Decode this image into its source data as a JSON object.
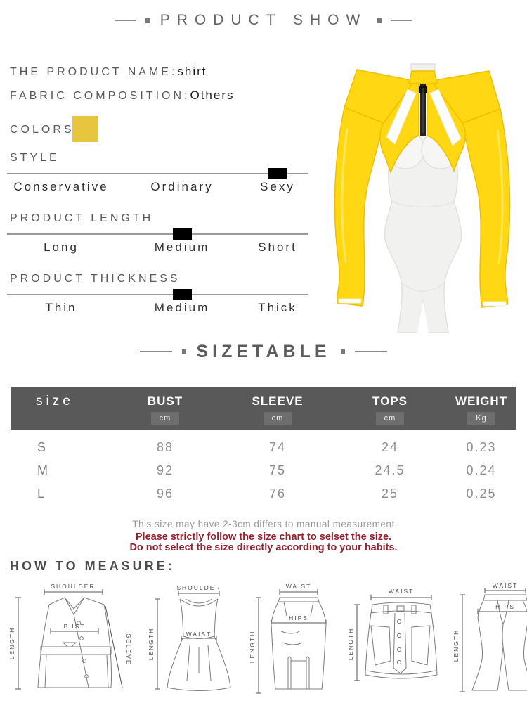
{
  "section_titles": {
    "product_show": "PRODUCT SHOW",
    "sizetable": "SIZETABLE",
    "how_to_measure": "HOW TO MEASURE:"
  },
  "product": {
    "name_label": "THE PRODUCT NAME:",
    "name_value": "shirt",
    "fabric_label": "FABRIC COMPOSITION:",
    "fabric_value": "Others",
    "colors_label": "COLORS:",
    "swatch_color_name": "yellow"
  },
  "attributes": [
    {
      "label": "STYLE",
      "options": [
        "Conservative",
        "Ordinary",
        "Sexy"
      ],
      "selected": "Sexy",
      "selected_index": 2
    },
    {
      "label": "PRODUCT LENGTH",
      "options": [
        "Long",
        "Medium",
        "Short"
      ],
      "selected": "Medium",
      "selected_index": 1
    },
    {
      "label": "PRODUCT THICKNESS",
      "options": [
        "Thin",
        "Medium",
        "Thick"
      ],
      "selected": "Medium",
      "selected_index": 1
    }
  ],
  "size_table": {
    "columns": [
      "size",
      "BUST",
      "SLEEVE",
      "TOPS",
      "WEIGHT"
    ],
    "units": [
      "",
      "cm",
      "cm",
      "cm",
      "Kg"
    ],
    "rows": [
      {
        "size": "S",
        "values": [
          "88",
          "74",
          "24",
          "0.23"
        ]
      },
      {
        "size": "M",
        "values": [
          "92",
          "75",
          "24.5",
          "0.24"
        ]
      },
      {
        "size": "L",
        "values": [
          "96",
          "76",
          "25",
          "0.25"
        ]
      }
    ]
  },
  "notes": {
    "line1": "This size may have 2-3cm differs to manual measurement",
    "line2": "Please strictly follow the size chart to selset the size.",
    "line3": "Do not select the size directly according to your habits."
  },
  "measure": {
    "diagrams": [
      {
        "name": "jacket",
        "labels": [
          "SHOULDER",
          "BUST",
          "LENGTH",
          "SELEVE"
        ]
      },
      {
        "name": "dress",
        "labels": [
          "SHOULDER",
          "WAIST",
          "LENGTH"
        ]
      },
      {
        "name": "pencil-skirt",
        "labels": [
          "WAIST",
          "HIPS",
          "LENGTH"
        ]
      },
      {
        "name": "mini-skirt",
        "labels": [
          "WAIST",
          "LENGTH"
        ]
      },
      {
        "name": "flare-pants",
        "labels": [
          "WAIST",
          "HIPS",
          "LENGTH"
        ]
      }
    ]
  },
  "colors": {
    "swatch_yellow": "#e7c63e",
    "accent_yellow": "#ffd813",
    "accent_yellow_dark": "#eebe00",
    "note_red": "#93212e",
    "band_gray": "#595959"
  }
}
